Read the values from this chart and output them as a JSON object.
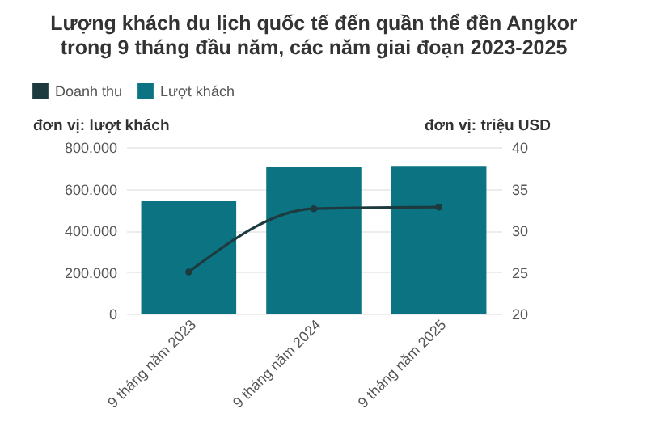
{
  "chart_data": {
    "type": "bar",
    "title": "Lượng khách du lịch quốc tế đến quần thể đền Angkor trong 9 tháng đầu năm, các năm giai đoạn 2023-2025",
    "categories": [
      "9 tháng năm 2023",
      "9 tháng năm 2024",
      "9 tháng năm 2025"
    ],
    "series": [
      {
        "name": "Doanh thu",
        "type": "line",
        "axis": "y2",
        "color": "#1d3b3e",
        "values": [
          25,
          32.6,
          32.8
        ]
      },
      {
        "name": "Lượt khách",
        "color": "#0b7382",
        "values": [
          540000,
          705000,
          710000
        ]
      }
    ],
    "ylabel": "đơn vị: lượt khách",
    "y2label": "đơn vị: triệu USD",
    "ylim": [
      0,
      800000
    ],
    "yticks": [
      0,
      {
        "value": 200000,
        "label": "200.000"
      },
      {
        "value": 400000,
        "label": "400.000"
      },
      {
        "value": 600000,
        "label": "600.000"
      },
      {
        "value": 800000,
        "label": "800.000"
      }
    ],
    "y2lim": [
      20,
      40
    ],
    "y2ticks": [
      20,
      25,
      30,
      35,
      40
    ],
    "grid": "y",
    "legend": "top left",
    "marker": "circle"
  }
}
